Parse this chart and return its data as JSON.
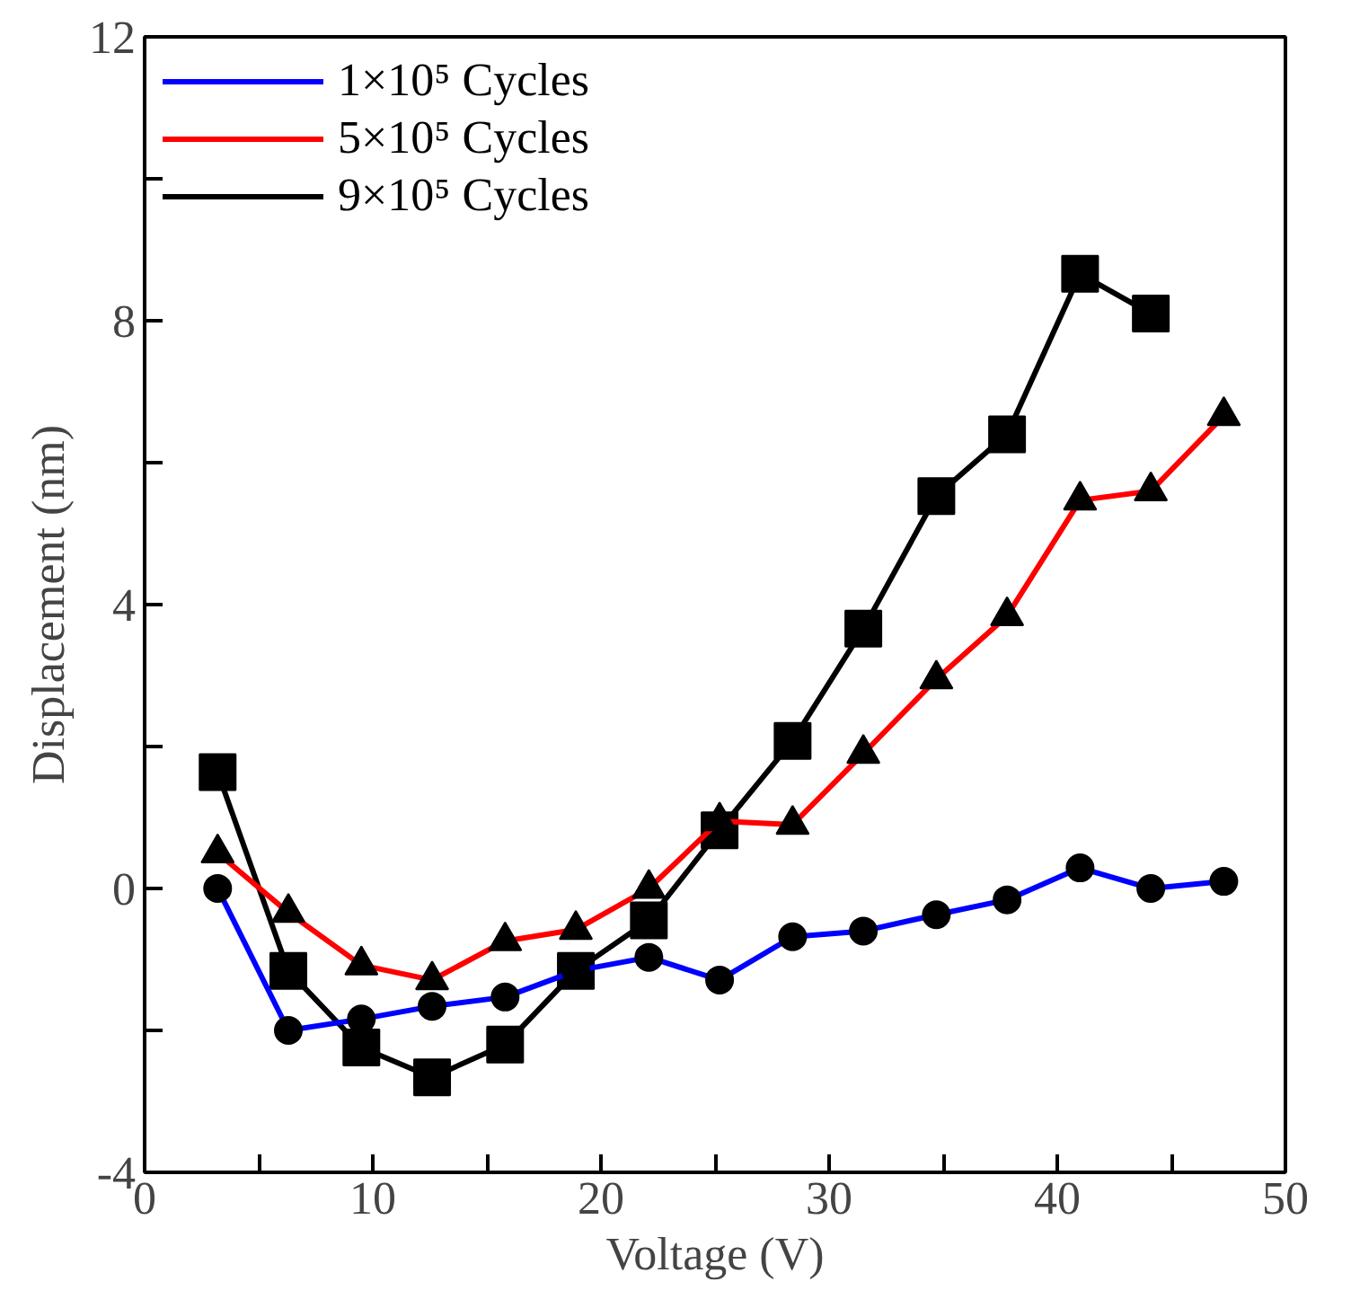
{
  "chart_data": {
    "type": "line",
    "xlabel": "Voltage (V)",
    "ylabel": "Displacement (nm)",
    "x": [
      3.2,
      6.3,
      9.5,
      12.6,
      15.8,
      18.9,
      22.1,
      25.2,
      28.4,
      31.5,
      34.7,
      37.8,
      41.0,
      44.1,
      47.3
    ],
    "series": [
      {
        "name": "1×10⁵ Cycles",
        "color": "#0000ff",
        "marker": "circle",
        "values": [
          0,
          -2.0,
          -1.84,
          -1.66,
          -1.53,
          -1.16,
          -0.97,
          -1.29,
          -0.68,
          -0.6,
          -0.37,
          -0.16,
          0.29,
          0,
          0.1
        ]
      },
      {
        "name": "5×10⁵ Cycles",
        "color": "#ff0000",
        "marker": "triangle",
        "values": [
          0.5,
          -0.34,
          -1.08,
          -1.29,
          -0.74,
          -0.58,
          0,
          0.95,
          0.9,
          1.9,
          2.95,
          3.84,
          5.47,
          5.6,
          6.66
        ]
      },
      {
        "name": "9×10⁵ Cycles",
        "color": "#000000",
        "marker": "square",
        "values": [
          1.64,
          -1.16,
          -2.24,
          -2.66,
          -2.2,
          -1.16,
          -0.45,
          0.82,
          2.08,
          3.66,
          5.53,
          6.4,
          8.66,
          8.1,
          null
        ]
      }
    ],
    "xlim": [
      0,
      50
    ],
    "ylim": [
      -4,
      12
    ],
    "xticks": [
      0,
      {
        "value": 5,
        "label": null
      },
      10,
      {
        "value": 15,
        "label": null
      },
      20,
      {
        "value": 25,
        "label": null
      },
      30,
      {
        "value": 35,
        "label": null
      },
      40,
      {
        "value": 45,
        "label": null
      },
      50
    ],
    "yticks": [
      -4,
      {
        "value": -2,
        "label": null
      },
      0,
      {
        "value": 2,
        "label": null
      },
      4,
      {
        "value": 6,
        "label": null
      },
      8,
      {
        "value": 10,
        "label": null
      },
      12
    ],
    "grid": false,
    "legend": "top left",
    "line_style": "solid"
  }
}
